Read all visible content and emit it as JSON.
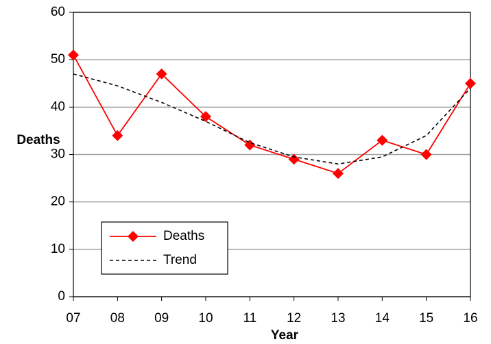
{
  "chart_data": {
    "type": "line",
    "categories": [
      "07",
      "08",
      "09",
      "10",
      "11",
      "12",
      "13",
      "14",
      "15",
      "16"
    ],
    "series": [
      {
        "name": "Deaths",
        "color": "#ff0000",
        "values": [
          51,
          34,
          47,
          38,
          32,
          29,
          26,
          33,
          30,
          45
        ]
      },
      {
        "name": "Trend",
        "color": "#000000",
        "dashed": true,
        "values": [
          47,
          44.5,
          41,
          37,
          32.5,
          29.5,
          28,
          29.5,
          34,
          44
        ]
      }
    ],
    "y_label": "Deaths",
    "x_label": "Year",
    "ylim": [
      0,
      60
    ],
    "yticks": [
      0,
      10,
      20,
      30,
      40,
      50,
      60
    ],
    "grid": true,
    "legend": "lower left"
  }
}
